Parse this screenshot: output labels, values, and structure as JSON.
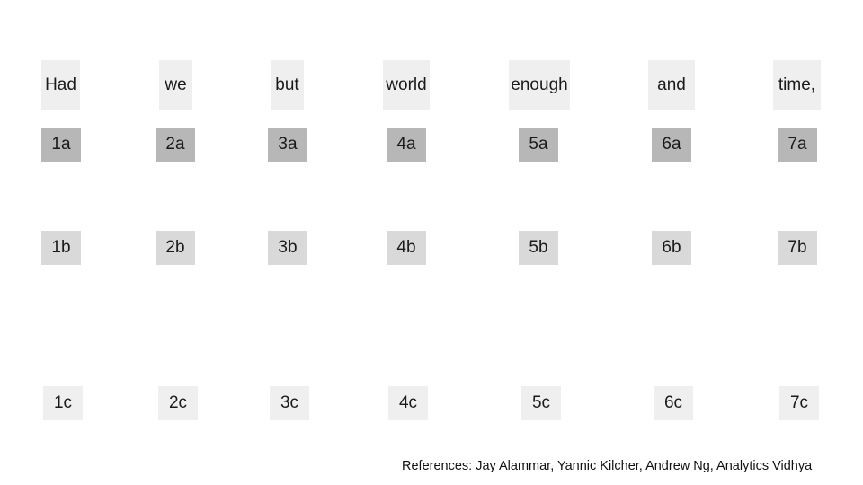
{
  "words": [
    "Had",
    "we",
    "but",
    "world",
    "enough",
    "and",
    "time,"
  ],
  "row_a": [
    "1a",
    "2a",
    "3a",
    "4a",
    "5a",
    "6a",
    "7a"
  ],
  "row_b": [
    "1b",
    "2b",
    "3b",
    "4b",
    "5b",
    "6b",
    "7b"
  ],
  "row_c": [
    "1c",
    "2c",
    "3c",
    "4c",
    "5c",
    "6c",
    "7c"
  ],
  "references": "References: Jay Alammar, Yannic Kilcher, Andrew Ng, Analytics Vidhya",
  "colors": {
    "word_box": "#efefef",
    "row_a_box": "#b7b7b7",
    "row_b_box": "#d9d9d9",
    "row_c_box": "#efefef"
  }
}
